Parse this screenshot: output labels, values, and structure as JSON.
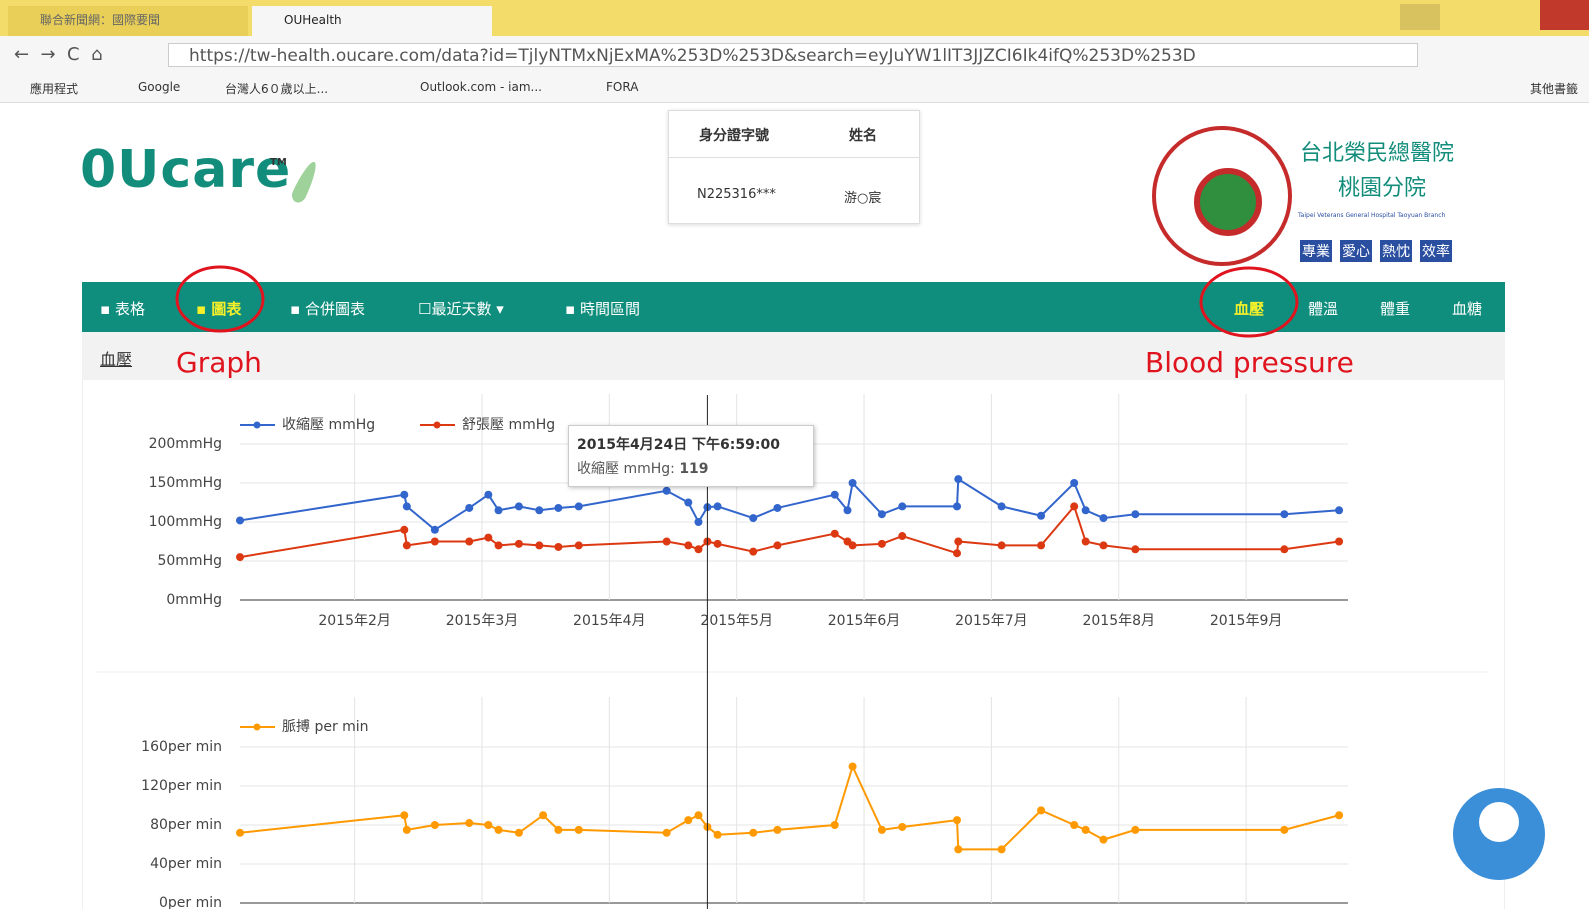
{
  "browser": {
    "tabs": [
      "聯合新聞網：國際要聞",
      "OUHealth"
    ],
    "url": "https://tw-health.oucare.com/data?id=TjlyNTMxNjExMA%253D%253D&search=eyJuYW1lIT3JJZCI6Ik4ifQ%253D%253D",
    "bookmarks": [
      "應用程式",
      "Google",
      "台灣人6０歲以上...",
      "Outlook.com - iam...",
      "FORA"
    ],
    "other_bookmarks": "其他書籤"
  },
  "header": {
    "logo": "0Ucare",
    "trademark": "TM",
    "patient_table": {
      "columns": [
        "身分證字號",
        "姓名"
      ],
      "rows": [
        [
          "N225316***",
          "游○宸"
        ]
      ]
    },
    "hospital": {
      "name": "台北榮民總醫院",
      "branch": "桃園分院",
      "english": "Taipei Veterans General Hospital Taoyuan Branch",
      "mottos": [
        "專業",
        "愛心",
        "熱忱",
        "效率"
      ]
    }
  },
  "nav": {
    "left": [
      "表格",
      "圖表",
      "合併圖表",
      "最近天數",
      "時間區間"
    ],
    "right": [
      "血壓",
      "體溫",
      "體重",
      "血糖"
    ]
  },
  "annotations": [
    "Graph",
    "Blood pressure"
  ],
  "section_title": "血壓",
  "tooltip": {
    "date": "2015年4月24日 下午6:59:00",
    "label": "收縮壓 mmHg: ",
    "value": 119
  },
  "chart_data": [
    {
      "type": "line",
      "x": [
        1.1,
        2.39,
        2.41,
        2.63,
        2.9,
        3.05,
        3.13,
        3.29,
        3.45,
        3.6,
        3.76,
        4.45,
        4.62,
        4.7,
        4.77,
        4.85,
        5.13,
        5.32,
        5.77,
        5.87,
        5.91,
        6.14,
        6.3,
        6.73,
        6.74,
        7.08,
        7.39,
        7.65,
        7.74,
        7.88,
        8.13,
        9.3,
        9.73
      ],
      "series": [
        {
          "name": "收縮壓 mmHg",
          "color": "#3366cc",
          "values": [
            102,
            135,
            120,
            90,
            118,
            135,
            115,
            120,
            115,
            118,
            120,
            140,
            125,
            100,
            119,
            120,
            105,
            118,
            135,
            115,
            150,
            110,
            120,
            120,
            155,
            120,
            108,
            150,
            115,
            105,
            110,
            110,
            115
          ]
        },
        {
          "name": "舒張壓 mmHg",
          "color": "#dc3912",
          "values": [
            55,
            90,
            70,
            75,
            75,
            80,
            70,
            72,
            70,
            68,
            70,
            75,
            70,
            65,
            75,
            72,
            62,
            70,
            85,
            75,
            70,
            72,
            82,
            60,
            75,
            70,
            70,
            120,
            75,
            70,
            65,
            65,
            75
          ]
        }
      ],
      "xlim": [
        1.1,
        9.8
      ],
      "xticks": [
        {
          "value": 2,
          "label": "2015年2月"
        },
        {
          "value": 3,
          "label": "2015年3月"
        },
        {
          "value": 4,
          "label": "2015年4月"
        },
        {
          "value": 5,
          "label": "2015年5月"
        },
        {
          "value": 6,
          "label": "2015年6月"
        },
        {
          "value": 7,
          "label": "2015年7月"
        },
        {
          "value": 8,
          "label": "2015年8月"
        },
        {
          "value": 9,
          "label": "2015年9月"
        }
      ],
      "ylim": [
        0,
        200
      ],
      "yticks": [
        {
          "value": 0,
          "label": "0mmHg"
        },
        {
          "value": 50,
          "label": "50mmHg"
        },
        {
          "value": 100,
          "label": "100mmHg"
        },
        {
          "value": 150,
          "label": "150mmHg"
        },
        {
          "value": 200,
          "label": "200mmHg"
        }
      ],
      "grid": true
    },
    {
      "type": "line",
      "x": [
        1.1,
        2.39,
        2.41,
        2.63,
        2.9,
        3.05,
        3.13,
        3.29,
        3.48,
        3.6,
        3.76,
        4.45,
        4.62,
        4.7,
        4.77,
        4.85,
        5.13,
        5.32,
        5.77,
        5.91,
        6.14,
        6.3,
        6.73,
        6.74,
        7.08,
        7.39,
        7.65,
        7.74,
        7.88,
        8.13,
        9.3,
        9.73
      ],
      "series": [
        {
          "name": "脈搏 per min",
          "color": "#ff9900",
          "values": [
            72,
            90,
            75,
            80,
            82,
            80,
            75,
            72,
            90,
            75,
            75,
            72,
            85,
            90,
            78,
            70,
            72,
            75,
            80,
            140,
            75,
            78,
            85,
            55,
            55,
            95,
            80,
            75,
            65,
            75,
            75,
            90
          ]
        }
      ],
      "xlim": [
        1.1,
        9.8
      ],
      "xticks": [
        2,
        3,
        4,
        5,
        6,
        7,
        8,
        9
      ],
      "ylim": [
        0,
        160
      ],
      "yticks": [
        {
          "value": 0,
          "label": "0per min"
        },
        {
          "value": 40,
          "label": "40per min"
        },
        {
          "value": 80,
          "label": "80per min"
        },
        {
          "value": 120,
          "label": "120per min"
        },
        {
          "value": 160,
          "label": "160per min"
        }
      ],
      "grid": true
    }
  ]
}
